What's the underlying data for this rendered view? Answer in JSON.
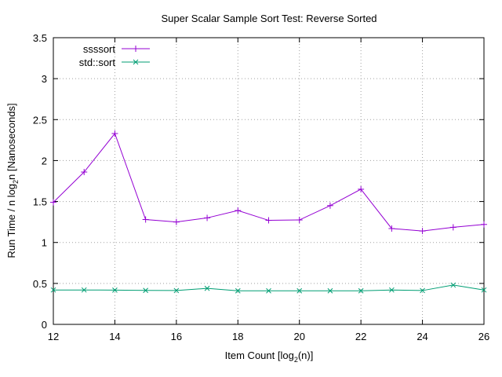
{
  "chart_data": {
    "type": "line",
    "title": "Super Scalar Sample Sort Test: Reverse Sorted",
    "xlabel": {
      "prefix": "Item Count [log",
      "subscript": "2",
      "suffix": "(n)]"
    },
    "ylabel": {
      "prefix": "Run Time / n log",
      "subscript": "2",
      "suffix": "n [Nanoseconds]"
    },
    "xlim": [
      12,
      26
    ],
    "ylim": [
      0,
      3.5
    ],
    "x_ticks": [
      12,
      14,
      16,
      18,
      20,
      22,
      24,
      26
    ],
    "y_ticks": [
      0,
      0.5,
      1,
      1.5,
      2,
      2.5,
      3,
      3.5
    ],
    "y_tick_labels": [
      "0",
      "0.5",
      "1",
      "1.5",
      "2",
      "2.5",
      "3",
      "3.5"
    ],
    "grid": true,
    "legend_position": "top-left",
    "x": [
      12,
      13,
      14,
      15,
      16,
      17,
      18,
      19,
      20,
      21,
      22,
      23,
      24,
      25,
      26
    ],
    "series": [
      {
        "name": "ssssort",
        "color": "#9400d3",
        "marker": "plus",
        "values": [
          1.49,
          1.86,
          2.33,
          1.28,
          1.25,
          1.3,
          1.39,
          1.27,
          1.275,
          1.45,
          1.65,
          1.17,
          1.14,
          1.185,
          1.22
        ]
      },
      {
        "name": "std::sort",
        "color": "#009e73",
        "marker": "cross",
        "values": [
          0.42,
          0.42,
          0.418,
          0.415,
          0.413,
          0.44,
          0.41,
          0.41,
          0.41,
          0.41,
          0.41,
          0.42,
          0.413,
          0.48,
          0.42
        ]
      }
    ]
  }
}
